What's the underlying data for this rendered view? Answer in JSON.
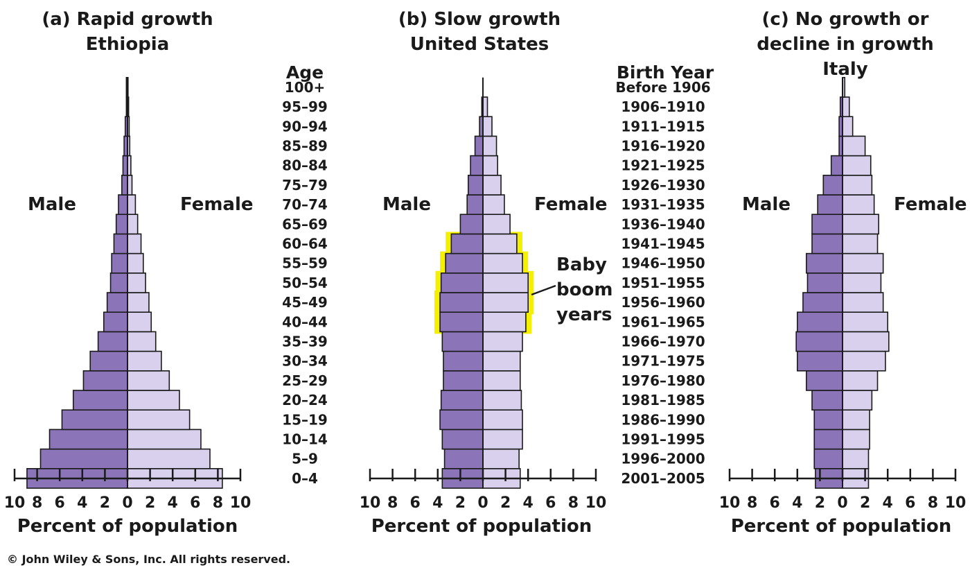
{
  "chart_data": [
    {
      "type": "bar",
      "orientation": "horizontal-pyramid",
      "title": "(a) Rapid growth",
      "subtitle": "Ethiopia",
      "xlabel": "Percent of population",
      "left_label": "Male",
      "right_label": "Female",
      "xlim": [
        -10,
        10
      ],
      "xticks": [
        "10",
        "8",
        "6",
        "4",
        "2",
        "0",
        "2",
        "4",
        "6",
        "8",
        "10"
      ],
      "categories": [
        "0–4",
        "5–9",
        "10–14",
        "15–19",
        "20–24",
        "25–29",
        "30–34",
        "35–39",
        "40–44",
        "45–49",
        "50–54",
        "55–59",
        "60–64",
        "65–69",
        "70–74",
        "75–79",
        "80–84",
        "85–89",
        "90–94",
        "95–99",
        "100+"
      ],
      "series": [
        {
          "name": "Male",
          "values": [
            8.9,
            7.7,
            6.9,
            5.8,
            4.8,
            3.9,
            3.3,
            2.6,
            2.1,
            1.8,
            1.5,
            1.4,
            1.2,
            1.0,
            0.8,
            0.5,
            0.4,
            0.3,
            0.2,
            0.1,
            0.1
          ]
        },
        {
          "name": "Female",
          "values": [
            8.4,
            7.3,
            6.5,
            5.5,
            4.6,
            3.7,
            3.0,
            2.5,
            2.1,
            1.9,
            1.6,
            1.4,
            1.2,
            0.9,
            0.7,
            0.4,
            0.3,
            0.2,
            0.15,
            0.1,
            0.05
          ]
        }
      ],
      "colors": {
        "male": "#8b74b8",
        "female": "#d8d0ec"
      }
    },
    {
      "type": "bar",
      "orientation": "horizontal-pyramid",
      "title": "(b) Slow growth",
      "subtitle": "United States",
      "xlabel": "Percent of population",
      "left_label": "Male",
      "right_label": "Female",
      "xlim": [
        -10,
        10
      ],
      "xticks": [
        "10",
        "8",
        "6",
        "4",
        "2",
        "0",
        "2",
        "4",
        "6",
        "8",
        "10"
      ],
      "categories": [
        "0–4",
        "5–9",
        "10–14",
        "15–19",
        "20–24",
        "25–29",
        "30–34",
        "35–39",
        "40–44",
        "45–49",
        "50–54",
        "55–59",
        "60–64",
        "65–69",
        "70–74",
        "75–79",
        "80–84",
        "85–89",
        "90–94",
        "95–99",
        "100+"
      ],
      "series": [
        {
          "name": "Male",
          "values": [
            3.6,
            3.4,
            3.6,
            3.8,
            3.7,
            3.5,
            3.5,
            3.6,
            3.8,
            3.8,
            3.7,
            3.3,
            2.8,
            2.0,
            1.4,
            1.3,
            1.1,
            0.7,
            0.3,
            0.1,
            0.0
          ]
        },
        {
          "name": "Female",
          "values": [
            3.3,
            3.2,
            3.5,
            3.5,
            3.4,
            3.3,
            3.3,
            3.5,
            3.8,
            4.0,
            4.0,
            3.5,
            3.0,
            2.4,
            1.9,
            1.6,
            1.3,
            1.2,
            0.8,
            0.4,
            0.0
          ]
        }
      ],
      "highlight": {
        "label_lines": [
          "Baby",
          "boom",
          "years"
        ],
        "age_groups": [
          "40–44",
          "45–49",
          "50–54",
          "55–59",
          "60–64"
        ],
        "color": "#f5ef00"
      },
      "colors": {
        "male": "#8b74b8",
        "female": "#d8d0ec"
      }
    },
    {
      "type": "bar",
      "orientation": "horizontal-pyramid",
      "title": "(c) No growth or decline in growth",
      "title_lines": [
        "(c) No growth or",
        "decline in growth",
        "Italy"
      ],
      "subtitle": "Italy",
      "xlabel": "Percent of population",
      "left_label": "Male",
      "right_label": "Female",
      "xlim": [
        -10,
        10
      ],
      "xticks": [
        "10",
        "8",
        "6",
        "4",
        "2",
        "0",
        "2",
        "4",
        "6",
        "8",
        "10"
      ],
      "categories": [
        "0–4",
        "5–9",
        "10–14",
        "15–19",
        "20–24",
        "25–29",
        "30–34",
        "35–39",
        "40–44",
        "45–49",
        "50–54",
        "55–59",
        "60–64",
        "65–69",
        "70–74",
        "75–79",
        "80–84",
        "85–89",
        "90–94",
        "95–99",
        "100+"
      ],
      "series": [
        {
          "name": "Male",
          "values": [
            2.4,
            2.5,
            2.5,
            2.5,
            2.7,
            3.2,
            4.0,
            4.1,
            4.0,
            3.5,
            3.1,
            3.2,
            2.7,
            2.7,
            2.2,
            1.7,
            1.0,
            0.3,
            0.3,
            0.2,
            0.0
          ]
        },
        {
          "name": "Female",
          "values": [
            2.3,
            2.3,
            2.4,
            2.4,
            2.6,
            3.1,
            3.8,
            4.1,
            4.0,
            3.6,
            3.4,
            3.6,
            3.1,
            3.2,
            2.8,
            2.6,
            2.5,
            2.0,
            0.9,
            0.6,
            0.2
          ]
        }
      ],
      "colors": {
        "male": "#8b74b8",
        "female": "#d8d0ec"
      }
    }
  ],
  "labels": {
    "age_heading": "Age",
    "ages": [
      "100+",
      "95–99",
      "90–94",
      "85–89",
      "80–84",
      "75–79",
      "70–74",
      "65–69",
      "60–64",
      "55–59",
      "50–54",
      "45–49",
      "40–44",
      "35–39",
      "30–34",
      "25–29",
      "20–24",
      "15–19",
      "10–14",
      "5–9",
      "0–4"
    ],
    "birth_heading": "Birth Year",
    "birth_years": [
      "Before 1906",
      "1906–1910",
      "1911–1915",
      "1916–1920",
      "1921–1925",
      "1926–1930",
      "1931–1935",
      "1936–1940",
      "1941–1945",
      "1946–1950",
      "1951–1955",
      "1956–1960",
      "1961–1965",
      "1966–1970",
      "1971–1975",
      "1976–1980",
      "1981–1985",
      "1986–1990",
      "1991–1995",
      "1996–2000",
      "2001–2005"
    ]
  },
  "copyright": "© John Wiley & Sons, Inc. All rights reserved."
}
